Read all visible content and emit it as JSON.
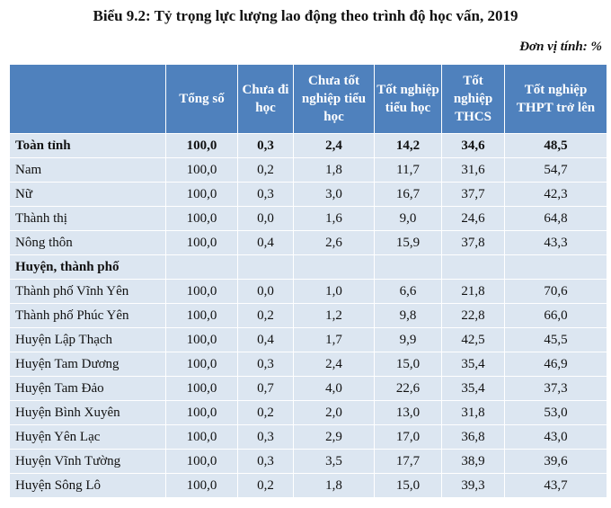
{
  "title": "Biểu 9.2: Tỷ trọng lực lượng lao động theo trình độ học vấn, 2019",
  "unit": "Đơn vị tính: %",
  "table": {
    "headers": [
      "",
      "Tổng số",
      "Chưa đi học",
      "Chưa tốt nghiệp tiểu học",
      "Tốt nghiệp tiểu học",
      "Tốt nghiệp THCS",
      "Tốt nghiệp THPT trở lên"
    ],
    "rows": [
      {
        "label": "Toàn tỉnh",
        "values": [
          "100,0",
          "0,3",
          "2,4",
          "14,2",
          "34,6",
          "48,5"
        ],
        "bold": true
      },
      {
        "label": "Nam",
        "values": [
          "100,0",
          "0,2",
          "1,8",
          "11,7",
          "31,6",
          "54,7"
        ]
      },
      {
        "label": "Nữ",
        "values": [
          "100,0",
          "0,3",
          "3,0",
          "16,7",
          "37,7",
          "42,3"
        ]
      },
      {
        "label": "Thành thị",
        "values": [
          "100,0",
          "0,0",
          "1,6",
          "9,0",
          "24,6",
          "64,8"
        ]
      },
      {
        "label": "Nông thôn",
        "values": [
          "100,0",
          "0,4",
          "2,6",
          "15,9",
          "37,8",
          "43,3"
        ]
      },
      {
        "label": "Huyện, thành phố",
        "values": [
          "",
          "",
          "",
          "",
          "",
          ""
        ],
        "bold": true
      },
      {
        "label": "Thành phố Vĩnh Yên",
        "values": [
          "100,0",
          "0,0",
          "1,0",
          "6,6",
          "21,8",
          "70,6"
        ]
      },
      {
        "label": "Thành phố Phúc Yên",
        "values": [
          "100,0",
          "0,2",
          "1,2",
          "9,8",
          "22,8",
          "66,0"
        ]
      },
      {
        "label": "Huyện Lập Thạch",
        "values": [
          "100,0",
          "0,4",
          "1,7",
          "9,9",
          "42,5",
          "45,5"
        ]
      },
      {
        "label": "Huyện Tam Dương",
        "values": [
          "100,0",
          "0,3",
          "2,4",
          "15,0",
          "35,4",
          "46,9"
        ]
      },
      {
        "label": "Huyện Tam Đảo",
        "values": [
          "100,0",
          "0,7",
          "4,0",
          "22,6",
          "35,4",
          "37,3"
        ]
      },
      {
        "label": "Huyện Bình Xuyên",
        "values": [
          "100,0",
          "0,2",
          "2,0",
          "13,0",
          "31,8",
          "53,0"
        ]
      },
      {
        "label": "Huyện Yên Lạc",
        "values": [
          "100,0",
          "0,3",
          "2,9",
          "17,0",
          "36,8",
          "43,0"
        ]
      },
      {
        "label": "Huyện Vĩnh Tường",
        "values": [
          "100,0",
          "0,3",
          "3,5",
          "17,7",
          "38,9",
          "39,6"
        ]
      },
      {
        "label": "Huyện Sông Lô",
        "values": [
          "100,0",
          "0,2",
          "1,8",
          "15,0",
          "39,3",
          "43,7"
        ]
      }
    ]
  }
}
